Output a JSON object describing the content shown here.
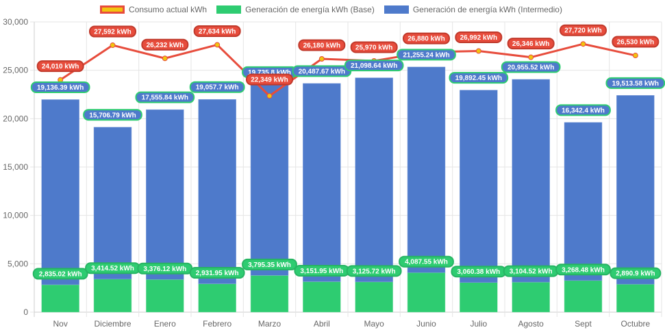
{
  "chart_data": {
    "type": "bar",
    "stacked": true,
    "title": "",
    "xlabel": "",
    "ylabel": "",
    "ylim": [
      0,
      30000
    ],
    "yticks": [
      0,
      5000,
      10000,
      15000,
      20000,
      25000,
      30000
    ],
    "ytick_labels": [
      "0",
      "5,000",
      "10,000",
      "15,000",
      "20,000",
      "25,000",
      "30,000"
    ],
    "grid": true,
    "legend_position": "top",
    "categories": [
      "Nov",
      "Diciembre",
      "Enero",
      "Febrero",
      "Marzo",
      "Abril",
      "Mayo",
      "Junio",
      "Julio",
      "Agosto",
      "Sept",
      "Octubre"
    ],
    "series": [
      {
        "name": "Consumo actual kWh",
        "type": "line",
        "color": "#e74c3c",
        "point_color": "#f1c40f",
        "values": [
          24010,
          27592,
          26232,
          27634,
          22349,
          26180,
          25970,
          26880,
          26992,
          26346,
          27720,
          26530
        ],
        "labels": [
          "24,010 kWh",
          "27,592 kWh",
          "26,232 kWh",
          "27,634 kWh",
          "22,349 kWh",
          "26,180 kWh",
          "25,970 kWh",
          "26,880 kWh",
          "26,992 kWh",
          "26,346 kWh",
          "27,720 kWh",
          "26,530 kWh"
        ]
      },
      {
        "name": "Generación de energía kWh (Base)",
        "type": "bar",
        "color": "#2ecc71",
        "values": [
          2835.02,
          3414.52,
          3376.12,
          2931.95,
          3795.35,
          3151.95,
          3125.72,
          4087.55,
          3060.38,
          3104.52,
          3268.48,
          2890.9
        ],
        "labels": [
          "2,835.02 kWh",
          "3,414.52 kWh",
          "3,376.12 kWh",
          "2,931.95 kWh",
          "3,795.35 kWh",
          "3,151.95 kWh",
          "3,125.72 kWh",
          "4,087.55 kWh",
          "3,060.38 kWh",
          "3,104.52 kWh",
          "3,268.48 kWh",
          "2,890.9 kWh"
        ]
      },
      {
        "name": "Generación de energía kWh (Intermedio)",
        "type": "bar",
        "color": "#4e7acb",
        "values": [
          19136.39,
          15706.79,
          17555.84,
          19057.7,
          19735.8,
          20487.67,
          21098.64,
          21255.24,
          19892.45,
          20955.52,
          16342.4,
          19513.58
        ],
        "labels": [
          "19,136.39 kWh",
          "15,706.79 kWh",
          "17,555.84 kWh",
          "19,057.7 kWh",
          "19,735.8 kWh",
          "20,487.67 kWh",
          "21,098.64 kWh",
          "21,255.24 kWh",
          "19,892.45 kWh",
          "20,955.52 kWh",
          "16,342.4 kWh",
          "19,513.58 kWh"
        ]
      }
    ]
  },
  "legend": {
    "items": [
      {
        "label": "Consumo actual kWh",
        "fill": "#f1c40f",
        "border": "#e74c3c"
      },
      {
        "label": "Generación de energía kWh (Base)",
        "fill": "#2ecc71",
        "border": "#2ecc71"
      },
      {
        "label": "Generación de energía kWh (Intermedio)",
        "fill": "#4e7acb",
        "border": "#4e7acb"
      }
    ]
  }
}
